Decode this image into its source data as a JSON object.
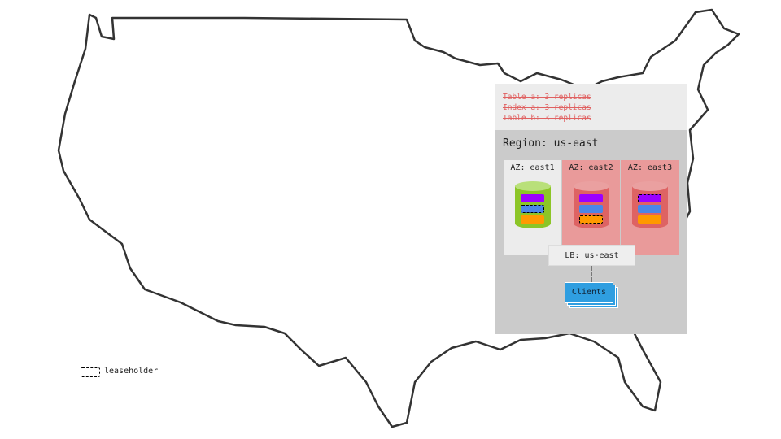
{
  "header": {
    "struck_lines": [
      "Table a: 3 replicas",
      "Index a: 3 replicas",
      "Table b: 3 replicas"
    ],
    "strike_color": "#e06060"
  },
  "region": {
    "label": "Region: us-east"
  },
  "zones": [
    {
      "label": "AZ: east1",
      "status": "up",
      "color": "#ececec",
      "cylinder_color": "#8cc527",
      "leaseholder": "blue"
    },
    {
      "label": "AZ: east2",
      "status": "down",
      "color": "#e99a9a",
      "cylinder_color": "#de6363",
      "leaseholder": "orange"
    },
    {
      "label": "AZ: east3",
      "status": "down",
      "color": "#e99a9a",
      "cylinder_color": "#de6363",
      "leaseholder": "purple"
    }
  ],
  "range_colors": {
    "purple": "#9b00ff",
    "blue": "#4a86e8",
    "orange": "#ff9900"
  },
  "load_balancer": {
    "label": "LB: us-east"
  },
  "clients": {
    "label": "Clients",
    "color": "#2f9ee0"
  },
  "legend": {
    "label": "leaseholder"
  }
}
